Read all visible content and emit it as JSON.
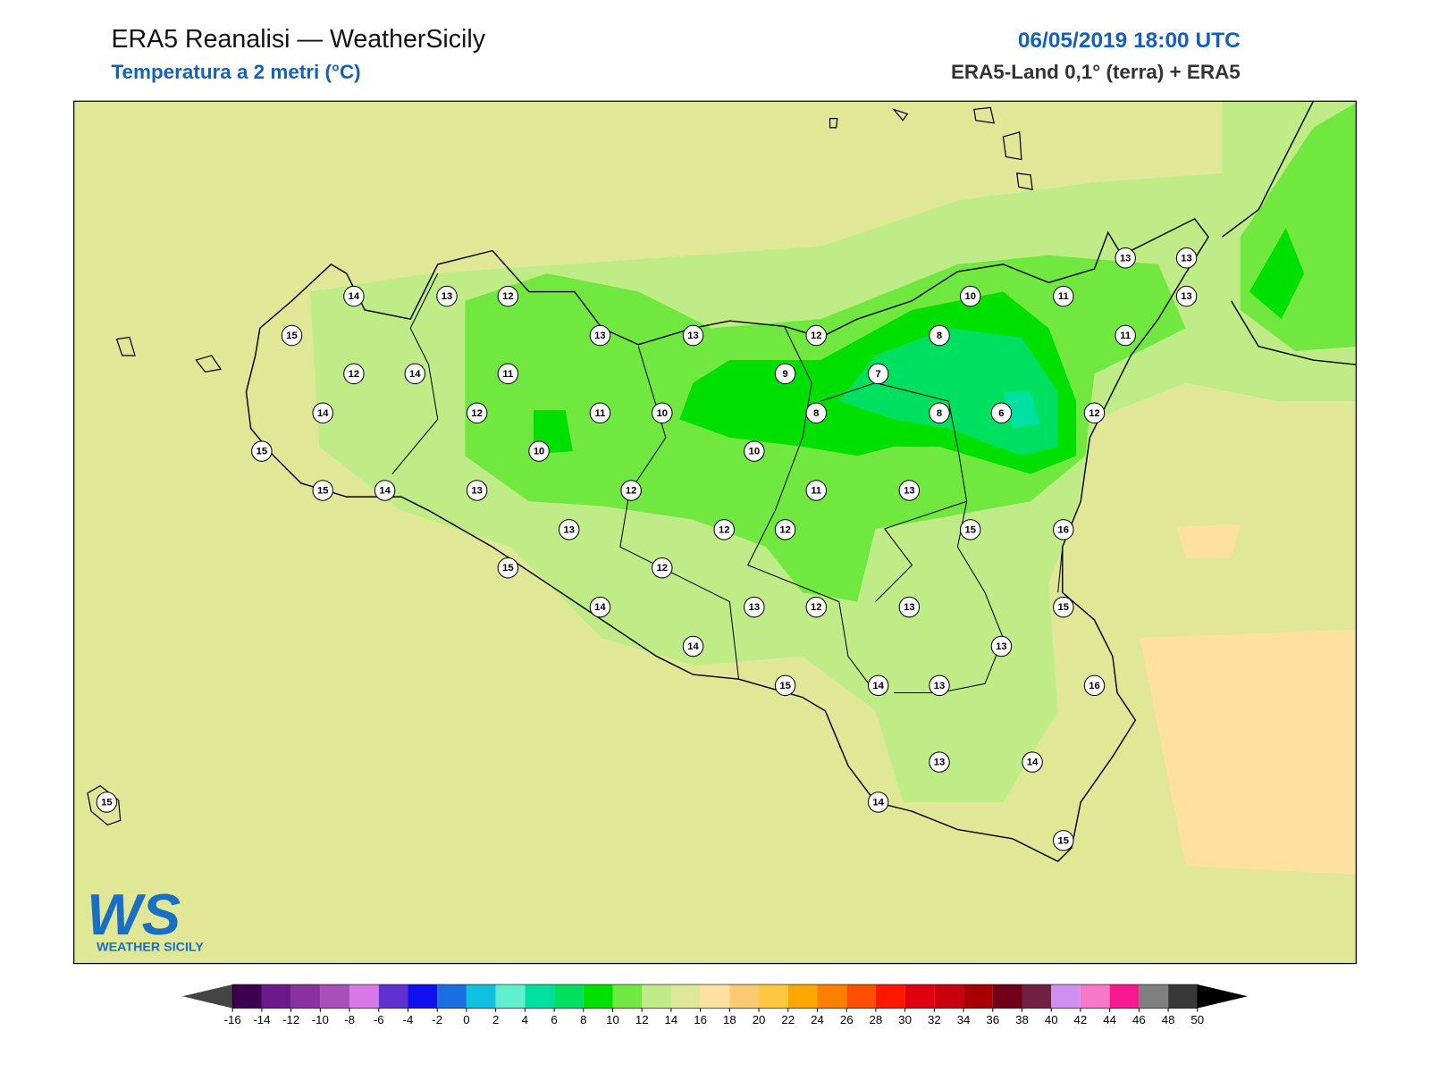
{
  "header": {
    "title": "ERA5 Reanalisi — WeatherSicily",
    "subtitle": "Temperatura a 2 metri (°C)",
    "datetime": "06/05/2019 18:00 UTC",
    "source": "ERA5-Land 0,1° (terra) + ERA5"
  },
  "stations": [
    14,
    13,
    12,
    15,
    12,
    14,
    11,
    14,
    12,
    11,
    10,
    15,
    10,
    15,
    14,
    13,
    12,
    13,
    15,
    12,
    14,
    14,
    13,
    13,
    12,
    9,
    7,
    8,
    10,
    11,
    13,
    13,
    13,
    11,
    8,
    8,
    6,
    12,
    10,
    11,
    13,
    12,
    12,
    15,
    16,
    13,
    12,
    13,
    15,
    13,
    15,
    14,
    13,
    16,
    13,
    14,
    14,
    15,
    15
  ],
  "colorbar": {
    "ticks": [
      -16,
      -14,
      -12,
      -10,
      -8,
      -6,
      -4,
      -2,
      0,
      2,
      4,
      6,
      8,
      10,
      12,
      14,
      16,
      18,
      20,
      22,
      24,
      26,
      28,
      30,
      32,
      34,
      36,
      38,
      40,
      42,
      44,
      46,
      48,
      50
    ],
    "colors": [
      "#3d0050",
      "#6a1a8a",
      "#8a30a0",
      "#a850b8",
      "#d878e8",
      "#6030d0",
      "#1010f0",
      "#1a70e0",
      "#10c0e0",
      "#60f0d0",
      "#00e0a0",
      "#00e060",
      "#00e000",
      "#70e840",
      "#c0ec88",
      "#e0e898",
      "#fee0a0",
      "#fcc870",
      "#fcc840",
      "#fca800",
      "#fc8000",
      "#fc5000",
      "#fc1800",
      "#e00010",
      "#c80010",
      "#a80000",
      "#700018",
      "#702040",
      "#d090f0",
      "#f878c8",
      "#f81890",
      "#808080",
      "#383838"
    ],
    "under_color": "#444444",
    "over_color": "#000000"
  },
  "logo": {
    "mark": "WS",
    "text": "WEATHER SICILY"
  }
}
